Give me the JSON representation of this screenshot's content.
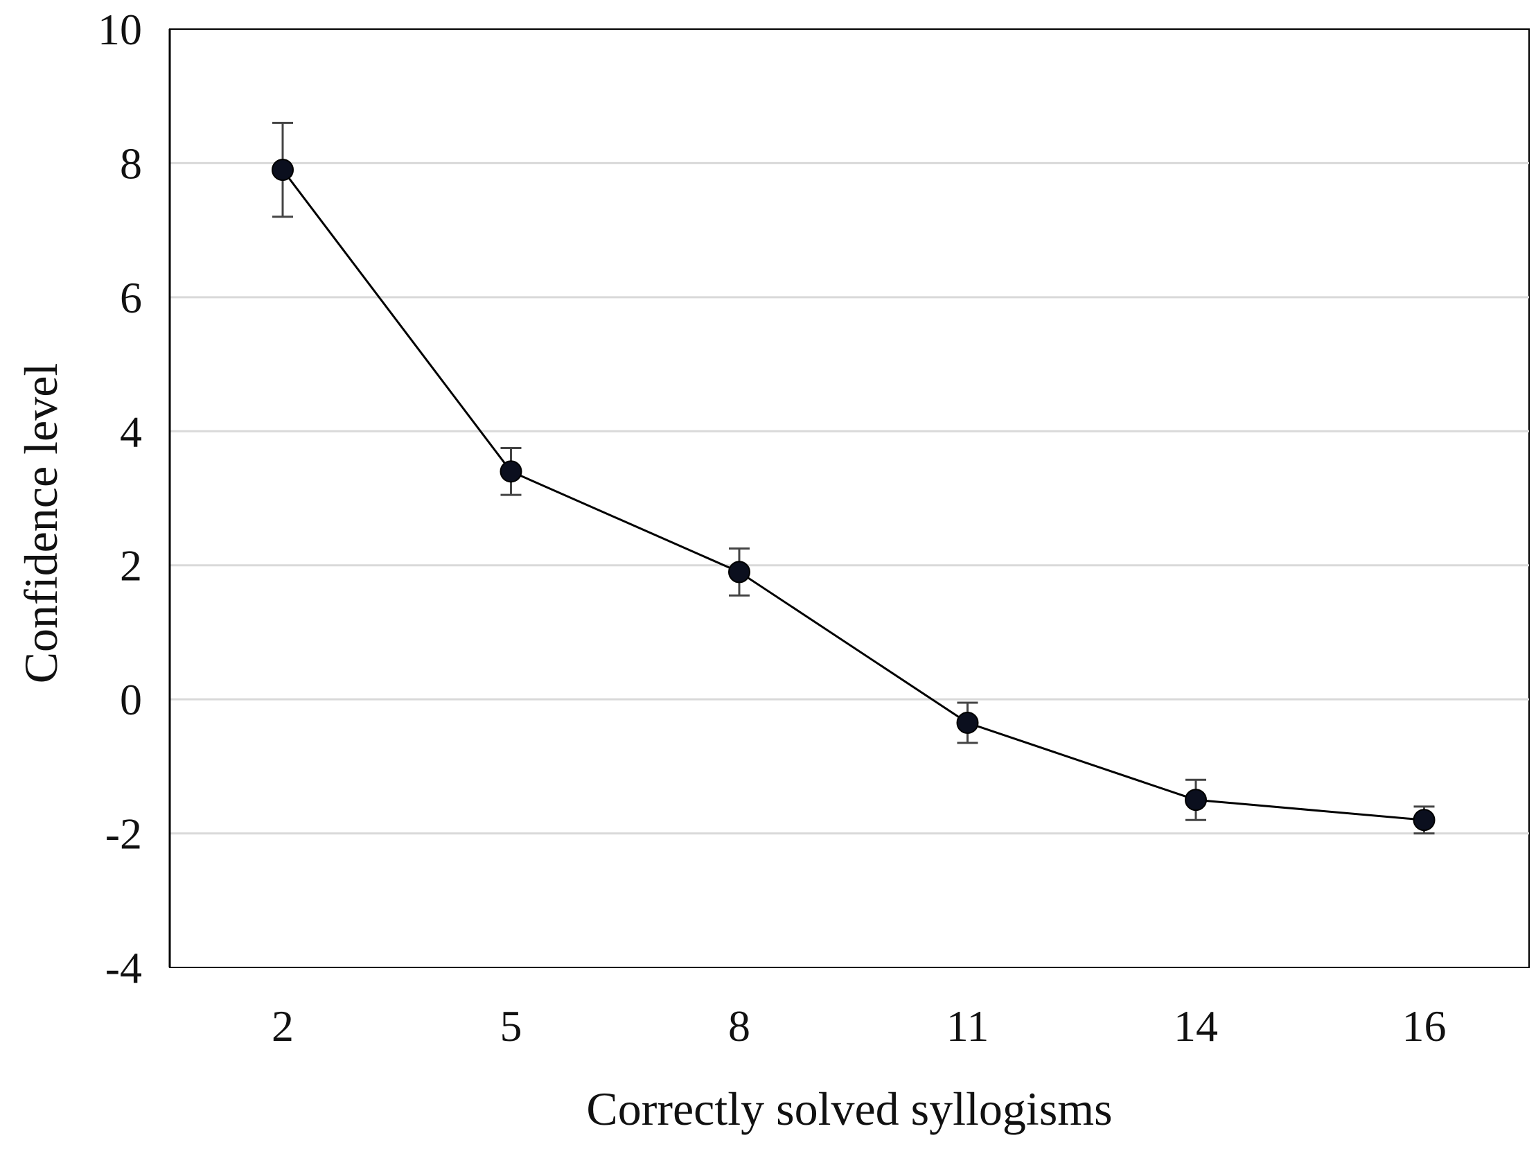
{
  "chart_data": {
    "type": "line",
    "title": "",
    "xlabel": "Correctly solved syllogisms",
    "ylabel": "Confidence level",
    "categories": [
      "2",
      "5",
      "8",
      "11",
      "14",
      "16"
    ],
    "series": [
      {
        "values": [
          7.9,
          3.4,
          1.9,
          -0.35,
          -1.5,
          -1.8
        ],
        "error": [
          0.7,
          0.35,
          0.35,
          0.3,
          0.3,
          0.2
        ]
      }
    ],
    "ylim": [
      -4,
      10
    ],
    "yticks": [
      "-4",
      "-2",
      "0",
      "2",
      "4",
      "6",
      "8",
      "10"
    ],
    "grid": true,
    "legend": "none",
    "colors": {
      "line": "#000000",
      "marker": "#0b0f1e",
      "gridline": "#d9d9d9",
      "errorbar": "#444444"
    }
  }
}
